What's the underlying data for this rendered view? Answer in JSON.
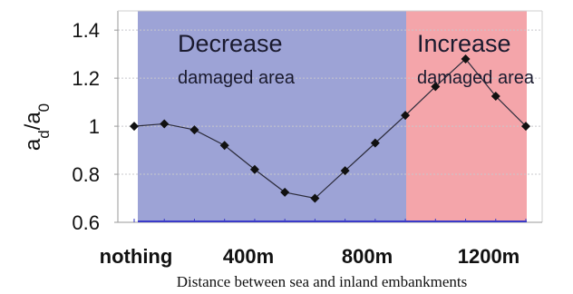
{
  "chart_data": {
    "type": "line",
    "ylabel_main": "a",
    "ylabel_sub1": "d",
    "ylabel_slash": "/a",
    "ylabel_sub2": "0",
    "xlabel": "Distance between sea and inland embankments",
    "x_tick_labels": [
      "nothing",
      "400m",
      "800m",
      "1200m"
    ],
    "y_ticks": [
      0.6,
      0.8,
      1,
      1.2,
      1.4
    ],
    "y_tick_labels": [
      "0.6",
      "0.8",
      "1",
      "1.2",
      "1.4"
    ],
    "ylim": [
      0.6,
      1.48
    ],
    "grid": "horizontal",
    "regions": [
      {
        "title": "Decrease",
        "subtitle": "damaged area",
        "color": "#9da3d6"
      },
      {
        "title": "Increase",
        "subtitle": "damaged area",
        "color": "#f4a5aa"
      }
    ],
    "series": [
      {
        "values": [
          1.0,
          1.01,
          0.985,
          0.92,
          0.82,
          0.725,
          0.7,
          0.815,
          0.93,
          1.045,
          1.165,
          1.28,
          1.125,
          1.0
        ],
        "color": "#2b2b3a"
      }
    ]
  }
}
